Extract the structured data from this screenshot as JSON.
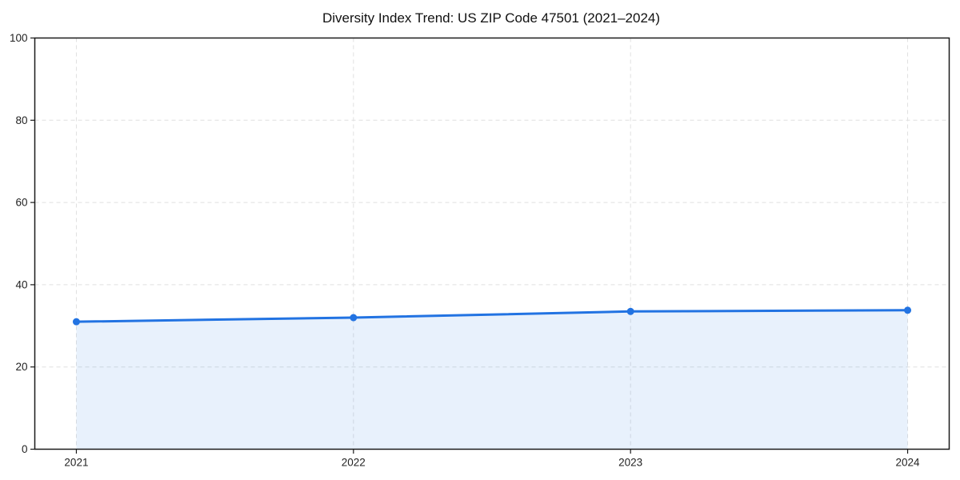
{
  "page": {
    "background": "#ffffff"
  },
  "chart_data": {
    "type": "line",
    "title": "Diversity Index Trend: US ZIP Code 47501 (2021–2024)",
    "categories": [
      "2021",
      "2022",
      "2023",
      "2024"
    ],
    "series": [
      {
        "name": "Diversity Index",
        "values": [
          31,
          32,
          33.5,
          33.8
        ]
      }
    ],
    "xlabel": "",
    "ylabel": "",
    "ylim": [
      0,
      100
    ],
    "yticks": [
      0,
      20,
      40,
      60,
      80,
      100
    ],
    "grid": true,
    "grid_style": "dashed",
    "legend_position": "none",
    "area_fill": true,
    "markers": true,
    "colors": {
      "line": "#2273e2",
      "marker": "#2273e2",
      "area": "rgba(34, 115, 226, 0.10)",
      "grid": "#e0e0e0",
      "spine": "#1a1a1a",
      "tick": "#1a1a1a",
      "tick_label": "#222222",
      "title": "#111111",
      "background": "#ffffff"
    }
  }
}
